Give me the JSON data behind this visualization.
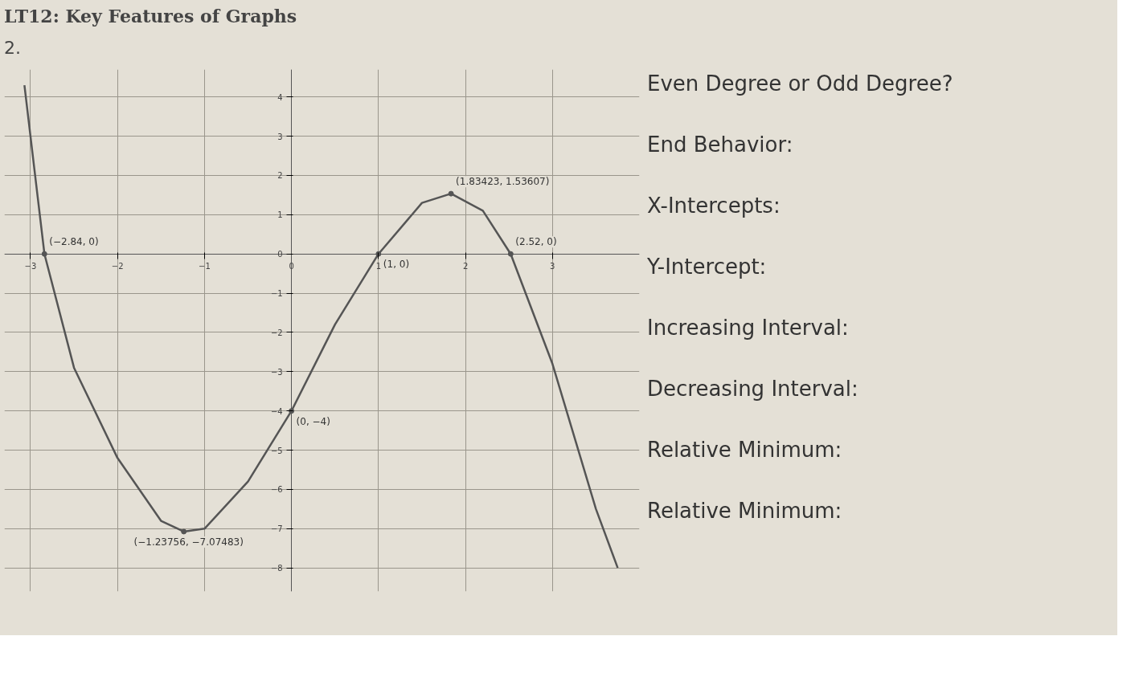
{
  "chart_data": {
    "type": "line",
    "title": "LT12: Key Features of Graphs",
    "subtitle": "2.",
    "x": [
      -3.07,
      -2.84,
      -2.5,
      -2,
      -1.5,
      -1.23756,
      -1,
      -0.5,
      0,
      0.5,
      1,
      1.5,
      1.83423,
      2.2,
      2.52,
      3,
      3.5,
      3.75
    ],
    "series": [
      {
        "color": "#555555",
        "values": [
          4.3,
          0,
          -2.9,
          -5.2,
          -6.8,
          -7.07483,
          -7.0,
          -5.8,
          -4,
          -1.8,
          0,
          1.3,
          1.53607,
          1.1,
          0,
          -2.8,
          -6.5,
          -8
        ]
      }
    ],
    "xlim": [
      -3.3,
      4
    ],
    "ylim": [
      -8.6,
      4.7
    ],
    "xticks": [
      -3,
      -2,
      -1,
      0,
      1,
      2,
      3
    ],
    "yticks": [
      -8,
      -7,
      -6,
      -5,
      -4,
      -3,
      -2,
      -1,
      0,
      1,
      2,
      3,
      4
    ],
    "grid": true,
    "marker": "none",
    "line_style": "solid",
    "annotations": [
      {
        "text": "(−2.84, 0)",
        "x": -2.84,
        "y": 0
      },
      {
        "text": "(−1.23756, −7.07483)",
        "x": -1.23756,
        "y": -7.07483
      },
      {
        "text": "(0, −4)",
        "x": 0,
        "y": -4
      },
      {
        "text": "(1, 0)",
        "x": 1,
        "y": 0
      },
      {
        "text": "(1.83423, 1.53607)",
        "x": 1.83423,
        "y": 1.53607
      },
      {
        "text": "(2.52, 0)",
        "x": 2.52,
        "y": 0
      },
      "Even Degree or Odd Degree?",
      "End Behavior:",
      "X-Intercepts:",
      "Y-Intercept:",
      "Increasing Interval:",
      "Decreasing Interval:",
      "Relative Minimum:",
      "Relative Minimum:"
    ]
  }
}
